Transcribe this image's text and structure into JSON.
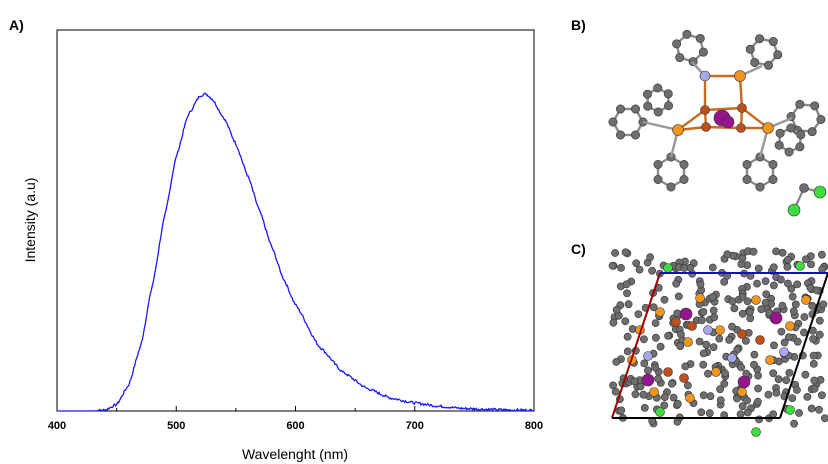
{
  "panels": {
    "a": "A)",
    "b": "B)",
    "c": "C)"
  },
  "colors": {
    "spectrum": "#1a1aff",
    "carbon": "#6e6e6e",
    "phosphorus": "#f0961e",
    "copper": "#c0501a",
    "iodine": "#96148c",
    "nitrogen": "#a8a8e8",
    "chlorine": "#3cdc3c",
    "cell_a": "#a00000",
    "cell_b": "#1010c0",
    "cell_c": "#000000"
  },
  "chart_data": {
    "type": "line",
    "title": "",
    "xlabel": "Wavelenght (nm)",
    "ylabel": "Intensity (a.u)",
    "xlim": [
      400,
      800
    ],
    "ylim": [
      0,
      1.0
    ],
    "xticks": [
      400,
      500,
      600,
      700,
      800
    ],
    "yticks": [],
    "grid": false,
    "legend": "none",
    "series": [
      {
        "x": [
          430,
          440,
          450,
          460,
          470,
          480,
          490,
          500,
          510,
          520,
          525,
          530,
          540,
          550,
          560,
          570,
          580,
          590,
          600,
          620,
          640,
          660,
          680,
          700,
          720,
          740,
          760,
          780,
          800
        ],
        "y": [
          0.0,
          0.003,
          0.02,
          0.08,
          0.2,
          0.39,
          0.6,
          0.79,
          0.92,
          0.98,
          0.985,
          0.97,
          0.91,
          0.83,
          0.73,
          0.62,
          0.51,
          0.41,
          0.33,
          0.2,
          0.12,
          0.07,
          0.04,
          0.025,
          0.015,
          0.008,
          0.005,
          0.003,
          0.002
        ]
      }
    ]
  },
  "molecule": {
    "name": "crystal-structure"
  }
}
